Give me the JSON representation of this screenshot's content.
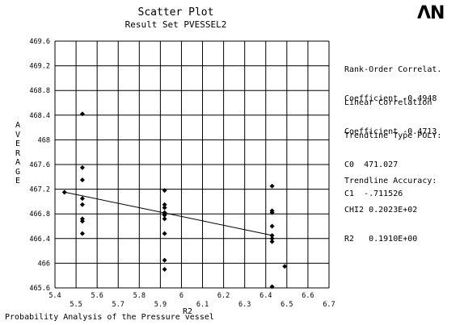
{
  "logo": {
    "text": "ΛN"
  },
  "stats": {
    "rank_label": "Rank-Order Correlat.",
    "rank_value": "Coefficient -0.4948",
    "linear_label": "Linear Correlation",
    "linear_value": "Coefficient -0.4713",
    "trend_type": "Trendline Type POLY:",
    "c0": "C0  471.027",
    "c1": "C1  -.711526",
    "accuracy_label": "Trendline Accuracy:",
    "chi2": "CHI2 0.2023E+02",
    "r2": "R2   0.1910E+00"
  },
  "footer": "Probability Analysis of the Pressure vessel",
  "chart_data": {
    "type": "scatter",
    "title": "Scatter Plot",
    "subtitle": "Result Set PVESSEL2",
    "xlabel": "R2",
    "ylabel": "AVERAGE",
    "xlim": [
      5.4,
      6.7
    ],
    "ylim": [
      465.6,
      469.6
    ],
    "grid": true,
    "x_ticks_lower": [
      "5.4",
      "5.6",
      "5.8",
      "6",
      "6.2",
      "6.4",
      "6.6"
    ],
    "x_ticks_upper": [
      "5.5",
      "5.7",
      "5.9",
      "6.1",
      "6.3",
      "6.5",
      "6.7"
    ],
    "y_ticks": [
      "465.6",
      "466",
      "466.4",
      "466.8",
      "467.2",
      "467.6",
      "468",
      "468.4",
      "468.8",
      "469.2",
      "469.6"
    ],
    "series": [
      {
        "points": [
          [
            5.445,
            467.15
          ],
          [
            5.53,
            468.42
          ],
          [
            5.53,
            467.55
          ],
          [
            5.53,
            467.35
          ],
          [
            5.53,
            467.05
          ],
          [
            5.53,
            466.95
          ],
          [
            5.53,
            466.72
          ],
          [
            5.53,
            466.68
          ],
          [
            5.53,
            466.48
          ],
          [
            5.92,
            467.18
          ],
          [
            5.92,
            466.95
          ],
          [
            5.92,
            466.9
          ],
          [
            5.92,
            466.82
          ],
          [
            5.92,
            466.78
          ],
          [
            5.92,
            466.72
          ],
          [
            5.92,
            466.48
          ],
          [
            5.92,
            466.05
          ],
          [
            5.92,
            465.9
          ],
          [
            6.43,
            467.25
          ],
          [
            6.43,
            466.85
          ],
          [
            6.43,
            466.82
          ],
          [
            6.43,
            466.6
          ],
          [
            6.43,
            466.45
          ],
          [
            6.43,
            466.4
          ],
          [
            6.43,
            466.35
          ],
          [
            6.43,
            465.62
          ],
          [
            6.49,
            465.95
          ]
        ]
      }
    ],
    "trendline": {
      "type": "poly",
      "c0": 471.027,
      "c1": -0.711526,
      "x_range": [
        5.445,
        6.43
      ]
    }
  }
}
